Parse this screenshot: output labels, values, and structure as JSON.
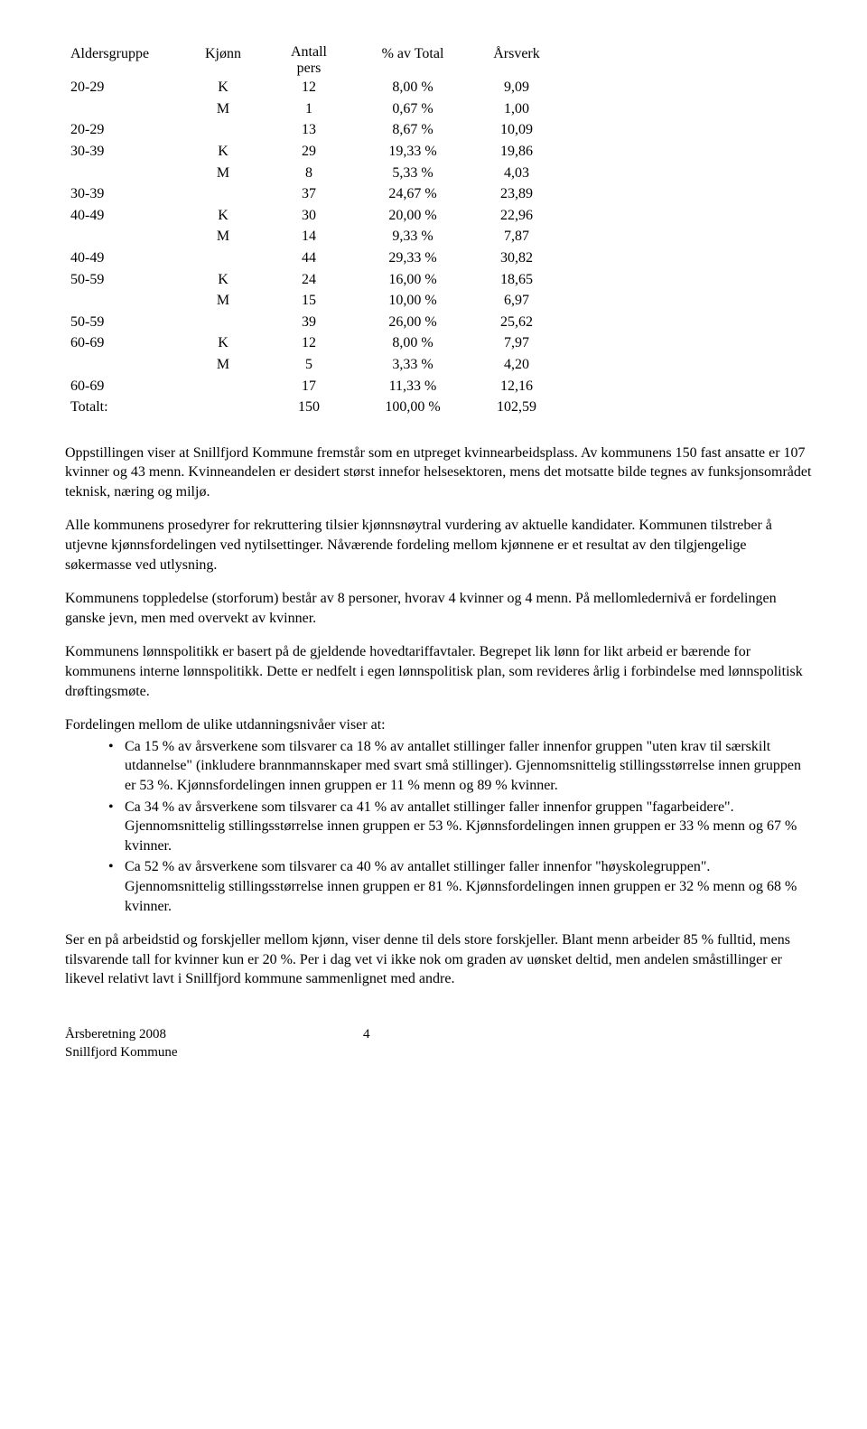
{
  "table": {
    "headers": {
      "age": "Aldersgruppe",
      "gender": "Kjønn",
      "pers_line1": "Antall",
      "pers_line2": "pers",
      "pct": "% av Total",
      "ars": "Årsverk"
    },
    "rows": [
      {
        "age": "20-29",
        "gender": "K",
        "pers": "12",
        "pct": "8,00 %",
        "ars": "9,09"
      },
      {
        "age": "",
        "gender": "M",
        "pers": "1",
        "pct": "0,67 %",
        "ars": "1,00"
      },
      {
        "age": "20-29",
        "gender": "",
        "pers": "13",
        "pct": "8,67 %",
        "ars": "10,09"
      },
      {
        "age": "30-39",
        "gender": "K",
        "pers": "29",
        "pct": "19,33 %",
        "ars": "19,86"
      },
      {
        "age": "",
        "gender": "M",
        "pers": "8",
        "pct": "5,33 %",
        "ars": "4,03"
      },
      {
        "age": "30-39",
        "gender": "",
        "pers": "37",
        "pct": "24,67 %",
        "ars": "23,89"
      },
      {
        "age": "40-49",
        "gender": "K",
        "pers": "30",
        "pct": "20,00 %",
        "ars": "22,96"
      },
      {
        "age": "",
        "gender": "M",
        "pers": "14",
        "pct": "9,33 %",
        "ars": "7,87"
      },
      {
        "age": "40-49",
        "gender": "",
        "pers": "44",
        "pct": "29,33 %",
        "ars": "30,82"
      },
      {
        "age": "50-59",
        "gender": "K",
        "pers": "24",
        "pct": "16,00 %",
        "ars": "18,65"
      },
      {
        "age": "",
        "gender": "M",
        "pers": "15",
        "pct": "10,00 %",
        "ars": "6,97"
      },
      {
        "age": "50-59",
        "gender": "",
        "pers": "39",
        "pct": "26,00 %",
        "ars": "25,62"
      },
      {
        "age": "60-69",
        "gender": "K",
        "pers": "12",
        "pct": "8,00 %",
        "ars": "7,97"
      },
      {
        "age": "",
        "gender": "M",
        "pers": "5",
        "pct": "3,33 %",
        "ars": "4,20"
      },
      {
        "age": "60-69",
        "gender": "",
        "pers": "17",
        "pct": "11,33 %",
        "ars": "12,16"
      },
      {
        "age": "Totalt:",
        "gender": "",
        "pers": "150",
        "pct": "100,00 %",
        "ars": "102,59"
      }
    ]
  },
  "paragraphs": {
    "p1": "Oppstillingen viser at Snillfjord Kommune fremstår som en utpreget kvinnearbeidsplass. Av kommunens 150 fast ansatte er 107 kvinner og 43 menn. Kvinneandelen er desidert størst innefor helsesektoren, mens det motsatte bilde tegnes av funksjonsområdet teknisk, næring og miljø.",
    "p2": "Alle kommunens prosedyrer for rekruttering tilsier kjønnsnøytral vurdering av aktuelle kandidater. Kommunen tilstreber å utjevne kjønnsfordelingen ved nytilsettinger. Nåværende fordeling mellom kjønnene er et resultat av den tilgjengelige søkermasse ved utlysning.",
    "p3": "Kommunens toppledelse (storforum) består av 8 personer, hvorav 4 kvinner og 4 menn. På mellomledernivå er fordelingen ganske jevn, men med overvekt av kvinner.",
    "p4": "Kommunens lønnspolitikk er basert på de gjeldende hovedtariffavtaler. Begrepet lik lønn for likt arbeid er bærende for kommunens interne lønnspolitikk. Dette er nedfelt i egen lønnspolitisk plan, som revideres årlig i forbindelse med lønnspolitisk drøftingsmøte.",
    "bullet_intro": "Fordelingen mellom de ulike utdanningsnivåer viser at:",
    "b1": "Ca 15 % av årsverkene som tilsvarer ca 18 % av antallet stillinger faller innenfor gruppen \"uten krav til særskilt utdannelse\" (inkludere brannmannskaper med svart små stillinger). Gjennomsnittelig stillingsstørrelse innen gruppen er 53 %. Kjønnsfordelingen innen gruppen er 11 % menn og 89 % kvinner.",
    "b2": "Ca 34 % av årsverkene som tilsvarer ca 41 % av antallet stillinger faller innenfor gruppen \"fagarbeidere\". Gjennomsnittelig stillingsstørrelse innen gruppen er 53 %. Kjønnsfordelingen innen gruppen er 33 % menn og 67 % kvinner.",
    "b3": "Ca 52 % av årsverkene som tilsvarer ca 40 % av antallet stillinger faller innenfor \"høyskolegruppen\". Gjennomsnittelig stillingsstørrelse innen gruppen er 81 %. Kjønnsfordelingen innen gruppen er 32 % menn og 68 % kvinner.",
    "p5": "Ser en på arbeidstid og forskjeller mellom kjønn, viser denne til dels store forskjeller. Blant menn arbeider 85 % fulltid, mens tilsvarende tall for kvinner kun er 20 %. Per i dag vet vi ikke nok om graden av uønsket deltid, men andelen småstillinger er likevel relativt lavt i Snillfjord kommune sammenlignet med andre."
  },
  "footer": {
    "line1": "Årsberetning  2008",
    "line2": "Snillfjord Kommune",
    "page": "4"
  }
}
